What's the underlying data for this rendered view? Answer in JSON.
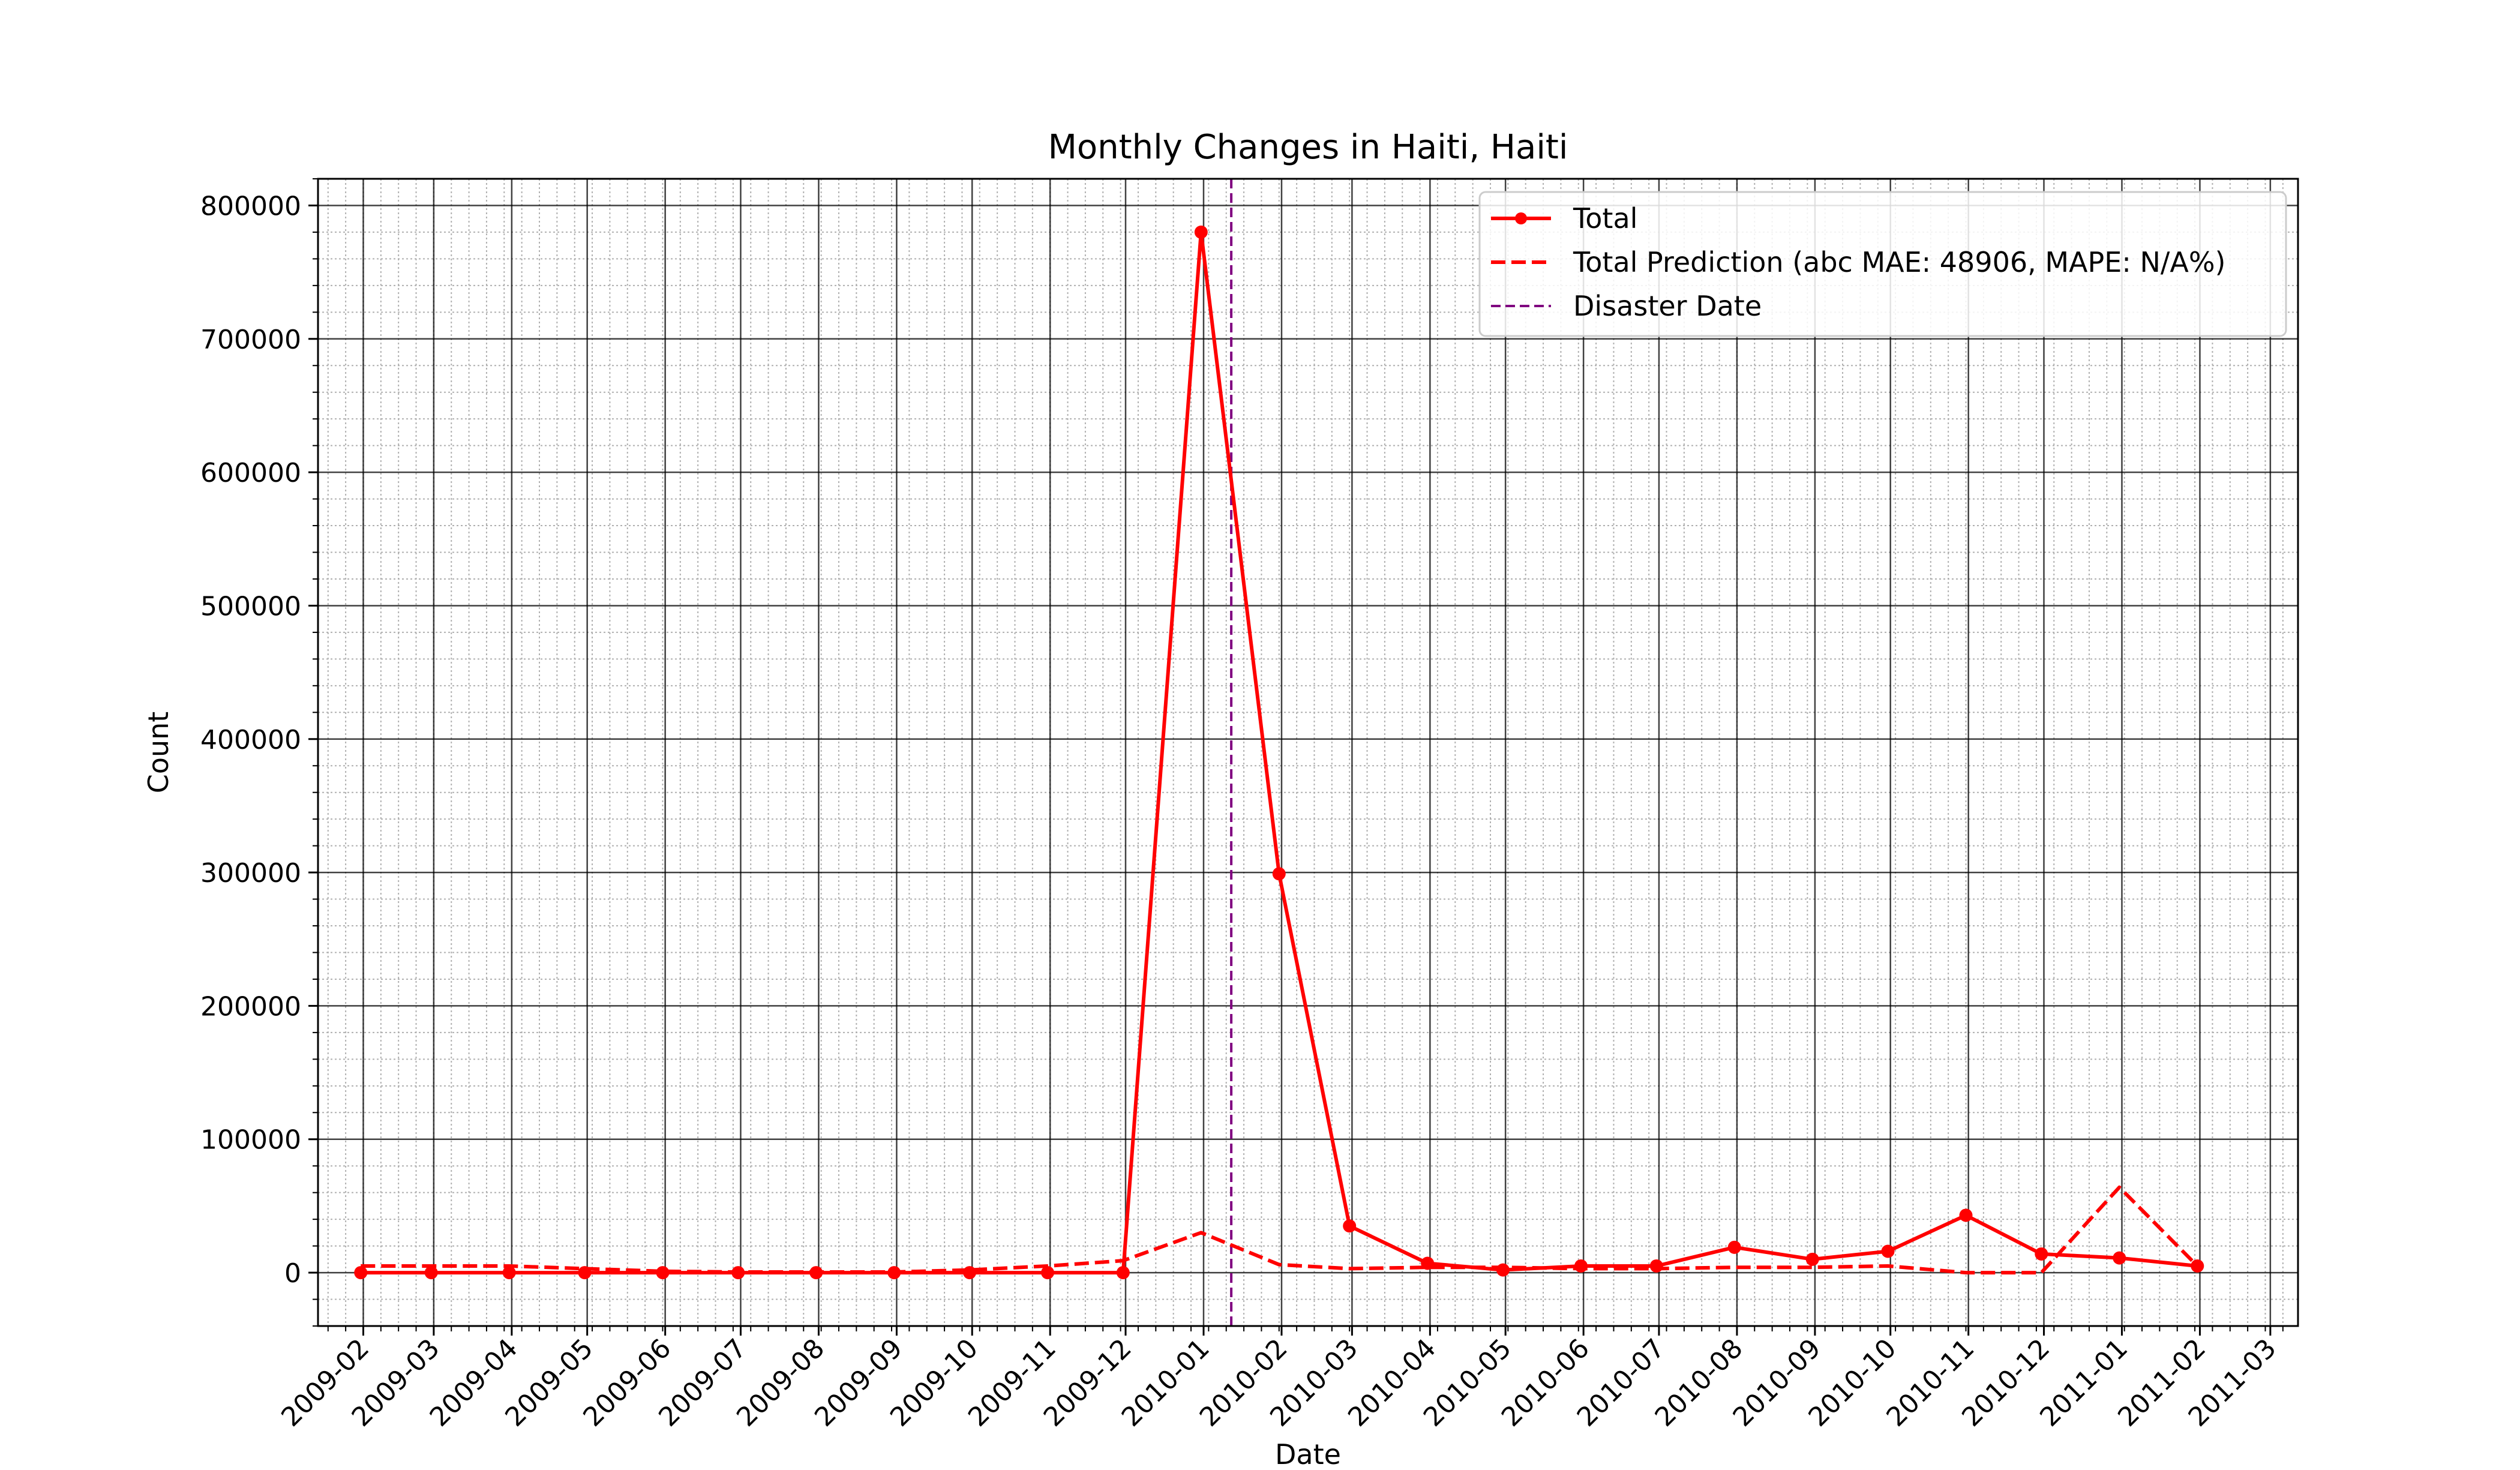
{
  "chart_data": {
    "type": "line",
    "title": "Monthly Changes in Haiti, Haiti",
    "xlabel": "Date",
    "ylabel": "Count",
    "xlim": [
      "2009-01-14",
      "2011-03-12"
    ],
    "ylim": [
      -40000,
      820000
    ],
    "x_major_ticks": [
      "2009-02",
      "2009-03",
      "2009-04",
      "2009-05",
      "2009-06",
      "2009-07",
      "2009-08",
      "2009-09",
      "2009-10",
      "2009-11",
      "2009-12",
      "2010-01",
      "2010-02",
      "2010-03",
      "2010-04",
      "2010-05",
      "2010-06",
      "2010-07",
      "2010-08",
      "2010-09",
      "2010-10",
      "2010-11",
      "2010-12",
      "2011-01",
      "2011-02",
      "2011-03"
    ],
    "y_major_ticks": [
      0,
      100000,
      200000,
      300000,
      400000,
      500000,
      600000,
      700000,
      800000
    ],
    "y_minor_step": 20000,
    "grid": true,
    "x": [
      "2009-01-31",
      "2009-02-28",
      "2009-03-31",
      "2009-04-30",
      "2009-05-31",
      "2009-06-30",
      "2009-07-31",
      "2009-08-31",
      "2009-09-30",
      "2009-10-31",
      "2009-11-30",
      "2009-12-31",
      "2010-01-31",
      "2010-02-28",
      "2010-03-31",
      "2010-04-30",
      "2010-05-31",
      "2010-06-30",
      "2010-07-31",
      "2010-08-31",
      "2010-09-30",
      "2010-10-31",
      "2010-11-30",
      "2010-12-31",
      "2011-01-31"
    ],
    "series": [
      {
        "name": "Total",
        "style": "solid",
        "marker": "circle",
        "color": "#ff0000",
        "values": [
          0,
          0,
          0,
          0,
          0,
          0,
          0,
          0,
          0,
          0,
          0,
          780000,
          299000,
          35000,
          7000,
          2000,
          5000,
          5000,
          19000,
          10000,
          16000,
          43000,
          14000,
          11000,
          5000
        ]
      },
      {
        "name": "Total Prediction (abc MAE: 48906, MAPE: N/A%)",
        "style": "dashed",
        "marker": "none",
        "color": "#ff0000",
        "values": [
          5000,
          5000,
          5000,
          3000,
          1000,
          500,
          500,
          500,
          2000,
          5000,
          9000,
          30000,
          6000,
          3000,
          4000,
          4000,
          3000,
          3000,
          4000,
          4000,
          5000,
          0,
          0,
          64000,
          5000
        ]
      }
    ],
    "vlines": [
      {
        "name": "Disaster Date",
        "x": "2010-01-12",
        "style": "dashed",
        "color": "#800080"
      }
    ],
    "legend_placement": "top-right"
  }
}
